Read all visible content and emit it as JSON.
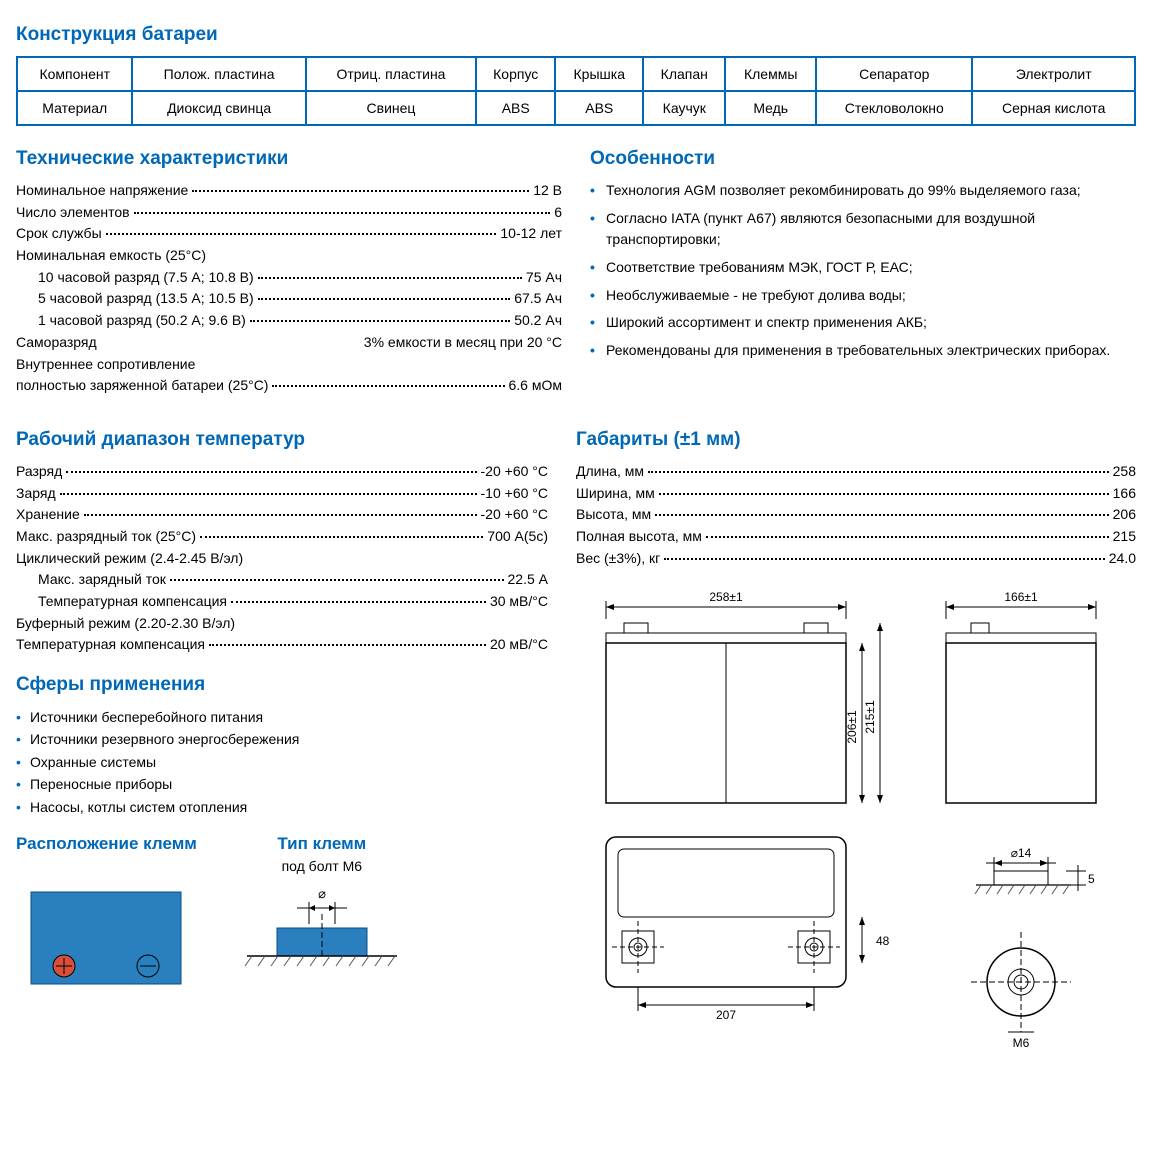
{
  "colors": {
    "brand": "#0068b7",
    "fill": "#2a7fbf",
    "text": "#000",
    "red": "#d94f3a",
    "hatch": "#555"
  },
  "construction": {
    "title": "Конструкция батареи",
    "header": [
      "Компонент",
      "Полож. пластина",
      "Отриц. пластина",
      "Корпус",
      "Крышка",
      "Клапан",
      "Клеммы",
      "Сепаратор",
      "Электролит"
    ],
    "row": [
      "Материал",
      "Диоксид свинца",
      "Свинец",
      "ABS",
      "ABS",
      "Каучук",
      "Медь",
      "Стекловолокно",
      "Серная кислота"
    ]
  },
  "specs": {
    "title": "Технические характеристики",
    "rows": [
      {
        "label": "Номинальное напряжение",
        "val": "12 В"
      },
      {
        "label": "Число элементов",
        "val": "6"
      },
      {
        "label": "Срок службы",
        "val": "10-12 лет"
      },
      {
        "label": "Номинальная емкость (25°C)",
        "noval": true
      },
      {
        "label": "10 часовой разряд (7.5 А; 10.8 В)",
        "val": "75 Ач",
        "indent": true
      },
      {
        "label": "5 часовой разряд (13.5 А; 10.5 В)",
        "val": "67.5 Ач",
        "indent": true
      },
      {
        "label": "1 часовой разряд (50.2 А; 9.6 В)",
        "val": "50.2 Ач",
        "indent": true
      },
      {
        "label": "Саморазряд",
        "val": "3% емкости в месяц при 20 °C",
        "plain": true
      },
      {
        "label": "Внутреннее сопротивление",
        "noval": true
      },
      {
        "label": "полностью заряженной батареи (25°C)",
        "val": "6.6 мОм"
      }
    ]
  },
  "features": {
    "title": "Особенности",
    "items": [
      "Технология AGM позволяет рекомбинировать до 99% выделяемого газа;",
      "Согласно IATA (пункт A67) являются безопасными для воздушной транспортировки;",
      "Соответствие требованиям МЭК, ГОСТ Р, ЕАС;",
      "Необслуживаемые - не требуют долива воды;",
      "Широкий ассортимент и спектр применения АКБ;",
      "Рекомендованы для применения в требовательных электрических приборах."
    ]
  },
  "temp": {
    "title": "Рабочий диапазон температур",
    "rows": [
      {
        "label": "Разряд",
        "val": "-20 +60 °C"
      },
      {
        "label": "Заряд",
        "val": "-10 +60 °C"
      },
      {
        "label": "Хранение",
        "val": "-20 +60 °C"
      },
      {
        "label": "Макс. разрядный ток (25°C)",
        "val": "700 А(5с)"
      },
      {
        "label": "Циклический режим (2.4-2.45 В/эл)",
        "noval": true
      },
      {
        "label": "Макс. зарядный ток",
        "val": "22.5 А",
        "indent": true
      },
      {
        "label": "Температурная компенсация",
        "val": "30 мВ/°C",
        "indent": true
      },
      {
        "label": "Буферный режим (2.20-2.30 В/эл)",
        "noval": true
      },
      {
        "label": "Температурная компенсация",
        "val": "20 мВ/°C"
      }
    ]
  },
  "dims": {
    "title": "Габариты (±1 мм)",
    "rows": [
      {
        "label": "Длина, мм",
        "val": "258"
      },
      {
        "label": "Ширина, мм",
        "val": "166"
      },
      {
        "label": "Высота, мм",
        "val": "206"
      },
      {
        "label": "Полная высота, мм",
        "val": "215"
      },
      {
        "label": "Вес (±3%), кг",
        "val": "24.0"
      }
    ],
    "labels": {
      "w": "258±1",
      "d": "166±1",
      "h": "206±1",
      "H": "215±1",
      "term_dia": "⌀14",
      "term_h": "5",
      "term_m": "M6",
      "top_w": "207",
      "top_h": "48"
    }
  },
  "apps": {
    "title": "Сферы применения",
    "items": [
      "Источники бесперебойного питания",
      "Источники резервного энергосбережения",
      "Охранные системы",
      "Переносные приборы",
      "Насосы, котлы систем отопления"
    ]
  },
  "terminal_layout": {
    "title": "Расположение клемм",
    "subtitle": ""
  },
  "terminal_type": {
    "title": "Тип клемм",
    "subtitle": "под болт М6",
    "dia_sym": "⌀"
  }
}
